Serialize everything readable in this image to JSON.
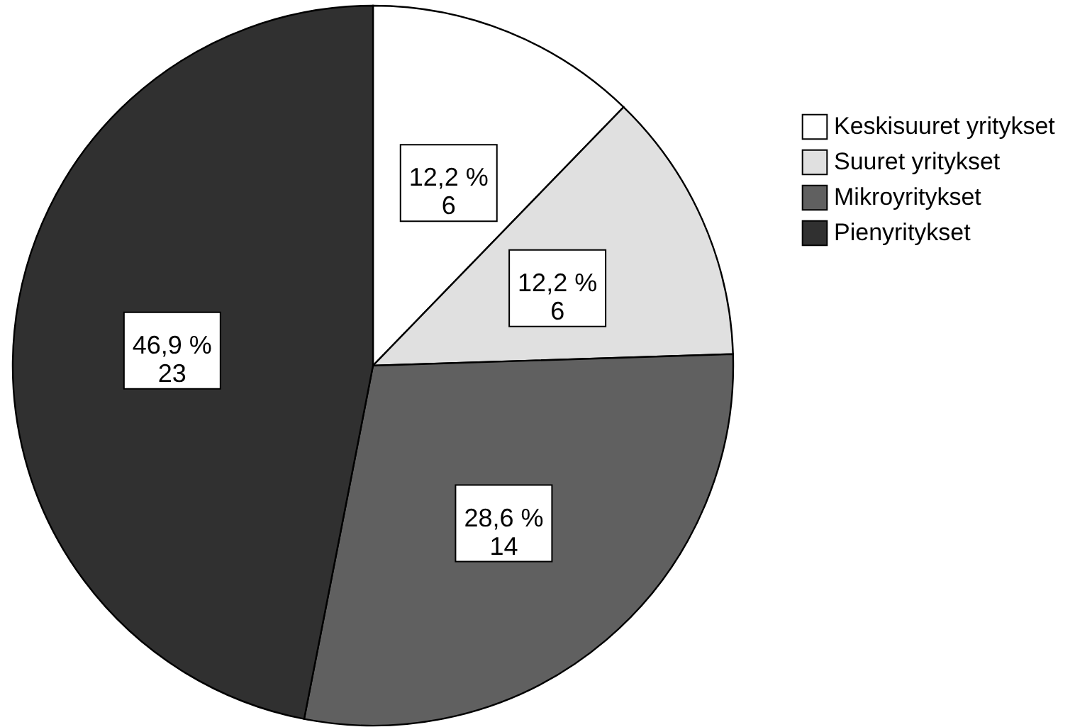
{
  "chart_data": {
    "type": "pie",
    "categories": [
      "Keskisuuret yritykset",
      "Suuret yritykset",
      "Mikroyritykset",
      "Pienyritykset"
    ],
    "values": [
      6,
      6,
      14,
      23
    ],
    "colors": [
      "#ffffff",
      "#e0e0e0",
      "#606060",
      "#303030"
    ],
    "value_labels": [
      "12,2 %\n6",
      "12,2 %\n6",
      "28,6 %\n14",
      "46,9 %\n23"
    ],
    "legend": "top right"
  }
}
